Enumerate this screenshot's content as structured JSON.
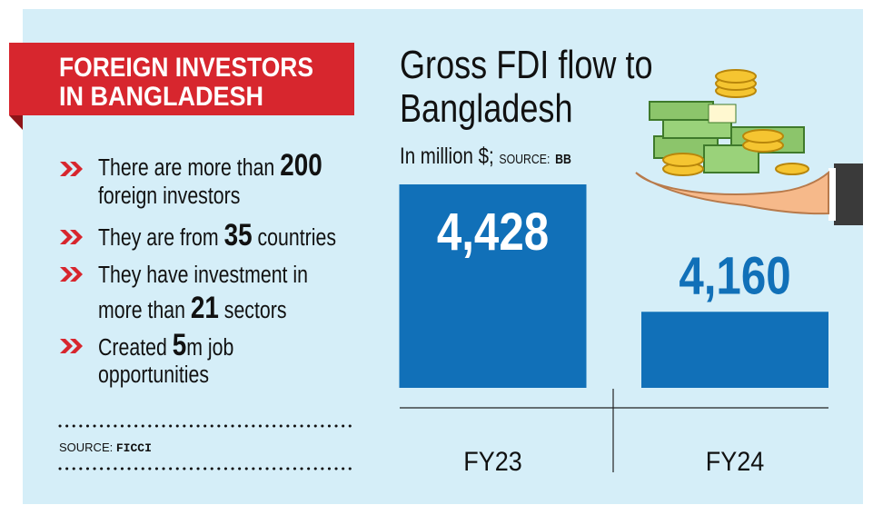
{
  "panel": {
    "heading": [
      "FOREIGN INVESTORS",
      "IN BANGLADESH"
    ],
    "bullets": [
      [
        [
          "There are more than ",
          200
        ],
        [
          "foreign investors"
        ]
      ],
      [
        [
          "They are from ",
          35,
          " countries"
        ]
      ],
      [
        [
          "They have investment in"
        ],
        [
          "more than ",
          21,
          " sectors"
        ]
      ],
      [
        [
          "Created ",
          5,
          "m job"
        ],
        [
          "opportunities"
        ]
      ]
    ],
    "source_label": "SOURCE:",
    "source": "FICCI"
  },
  "chart_data": {
    "type": "bar",
    "title": [
      "Gross FDI flow to",
      "Bangladesh"
    ],
    "subtitle": "In million $;",
    "source_label": "SOURCE:",
    "source": "BB",
    "categories": [
      "FY23",
      "FY24"
    ],
    "values": [
      4428,
      4160
    ],
    "value_labels": [
      "4,428",
      "4,160"
    ],
    "color": "#1170b8",
    "ylim": [
      4000,
      4450
    ]
  }
}
